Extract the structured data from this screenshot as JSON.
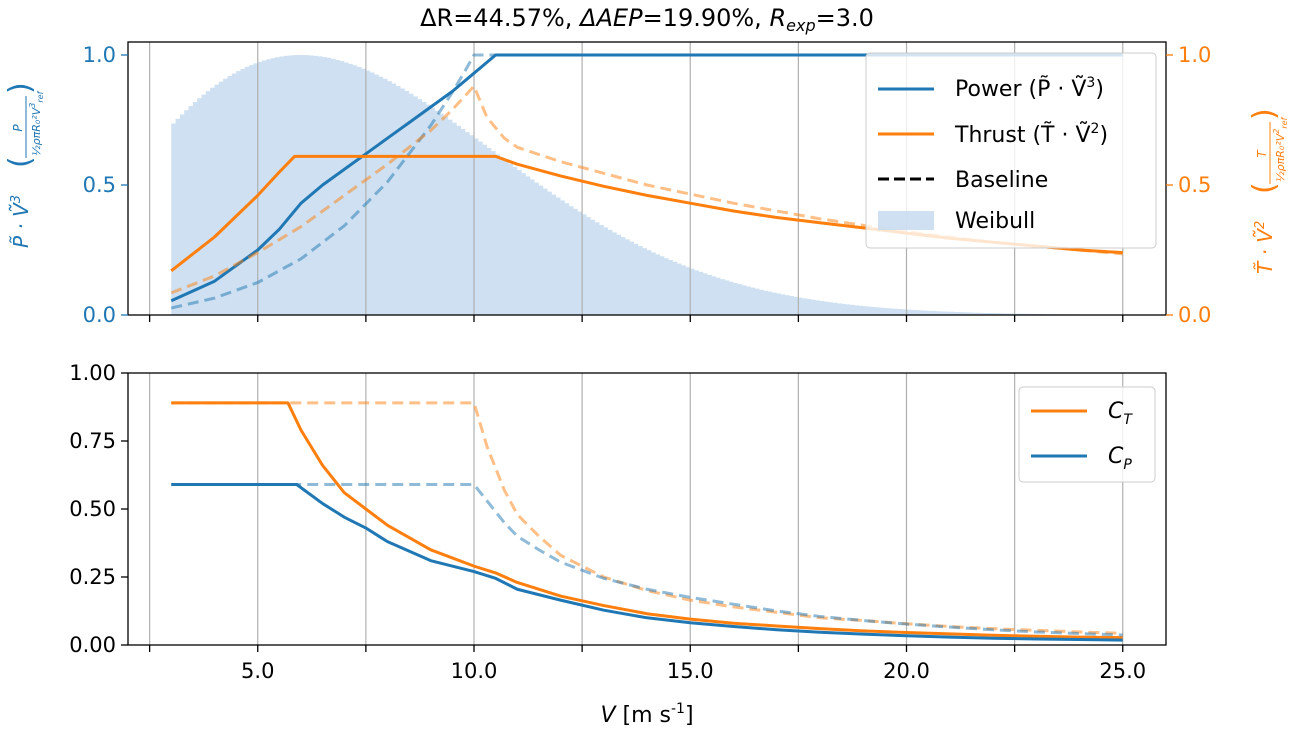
{
  "figure": {
    "title": "ΔR=44.57%, ΔAEP=19.90%, R_exp=3.0",
    "title_parts": {
      "dR_label": "ΔR",
      "dR_value": "=44.57%, ",
      "dAEP_label": "ΔAEP",
      "dAEP_value": "=19.90%, ",
      "Rexp_label": "R",
      "Rexp_sub": "exp",
      "Rexp_value": "=3.0"
    }
  },
  "colors": {
    "blue": "#1f77b4",
    "orange": "#ff7f0e",
    "weibull_fill": "#c6dbef",
    "grid": "#b0b0b0",
    "axis": "#000000"
  },
  "chart_data": [
    {
      "type": "line",
      "name": "top",
      "xlim": [
        2.0,
        26.0
      ],
      "ylim_left": [
        0.0,
        1.05
      ],
      "ylim_right": [
        0.0,
        1.05
      ],
      "x_gridlines": [
        2.5,
        5.0,
        7.5,
        10.0,
        12.5,
        15.0,
        17.5,
        20.0,
        22.5,
        25.0
      ],
      "yticks_left": [
        "0.0",
        "0.5",
        "1.0"
      ],
      "yticks_right": [
        "0.0",
        "0.5",
        "1.0"
      ],
      "ylabel_left": "P̃ · Ṽ³ (P / (½ρπR₀²V_ref³))",
      "ylabel_left_parts": {
        "main": "P̃ · Ṽ",
        "main_sup": "3",
        "frac_num": "P",
        "frac_den": "½ρπR₀²V",
        "frac_den_sup": "3",
        "frac_den_sub": "ref"
      },
      "ylabel_right": "T̃ · Ṽ² (T / (½ρπR₀²V_ref²))",
      "ylabel_right_parts": {
        "main": "T̃ · Ṽ",
        "main_sup": "2",
        "frac_num": "T",
        "frac_den": "½ρπR₀²V",
        "frac_den_sup": "2",
        "frac_den_sub": "ref"
      },
      "legend": {
        "placement": "top-right",
        "entries": [
          {
            "label": "Power (P̃ · Ṽ³)",
            "base": "Power (P̃ · Ṽ",
            "sup": "3",
            "end": ")",
            "style": "solid",
            "color": "#1f77b4"
          },
          {
            "label": "Thrust (T̃ · Ṽ²)",
            "base": "Thrust (T̃ · Ṽ",
            "sup": "2",
            "end": ")",
            "style": "solid",
            "color": "#ff7f0e"
          },
          {
            "label": "Baseline",
            "base": "Baseline",
            "sup": "",
            "end": "",
            "style": "dashed",
            "color": "#000000"
          },
          {
            "label": "Weibull",
            "base": "Weibull",
            "sup": "",
            "end": "",
            "style": "patch",
            "color": "#c6dbef"
          }
        ]
      },
      "weibull": {
        "x_start": 3.0,
        "x_end": 25.0,
        "bin_width": 0.1,
        "shape_k": 2.0,
        "peak_x": 6.0,
        "peak_value": 1.0
      },
      "series": [
        {
          "name": "Power (P̃ · Ṽ³)",
          "axis": "left",
          "color": "#1f77b4",
          "style": "solid",
          "x": [
            3.0,
            4.0,
            5.0,
            5.5,
            6.0,
            6.5,
            7.0,
            7.5,
            8.0,
            8.5,
            9.0,
            9.5,
            10.0,
            10.5,
            25.0
          ],
          "y": [
            0.055,
            0.13,
            0.25,
            0.33,
            0.43,
            0.5,
            0.56,
            0.62,
            0.68,
            0.74,
            0.8,
            0.86,
            0.93,
            1.0,
            1.0
          ]
        },
        {
          "name": "Thrust (T̃ · Ṽ²)",
          "axis": "right",
          "color": "#ff7f0e",
          "style": "solid",
          "x": [
            3.0,
            4.0,
            5.0,
            5.5,
            5.85,
            10.5,
            11.0,
            12.0,
            13.0,
            14.0,
            15.0,
            16.0,
            17.0,
            18.0,
            19.0,
            20.0,
            21.0,
            22.0,
            23.0,
            24.0,
            25.0
          ],
          "y": [
            0.17,
            0.3,
            0.46,
            0.55,
            0.61,
            0.61,
            0.58,
            0.535,
            0.495,
            0.46,
            0.43,
            0.4,
            0.375,
            0.355,
            0.335,
            0.315,
            0.295,
            0.28,
            0.265,
            0.25,
            0.24
          ]
        },
        {
          "name": "Power baseline",
          "axis": "left",
          "color": "#1f77b4",
          "style": "dashed",
          "x": [
            3.0,
            4.0,
            5.0,
            6.0,
            7.0,
            8.0,
            9.0,
            9.5,
            9.8,
            10.0,
            25.0
          ],
          "y": [
            0.027,
            0.065,
            0.125,
            0.216,
            0.343,
            0.512,
            0.729,
            0.857,
            0.941,
            1.0,
            1.0
          ]
        },
        {
          "name": "Thrust baseline",
          "axis": "right",
          "color": "#ff7f0e",
          "style": "dashed",
          "x": [
            3.0,
            4.0,
            5.0,
            6.0,
            7.0,
            8.0,
            9.0,
            9.5,
            10.0,
            10.3,
            10.7,
            11.0,
            12.0,
            13.0,
            14.0,
            15.0,
            16.0,
            17.0,
            18.0,
            19.0,
            20.0,
            21.0,
            22.0,
            23.0,
            24.0,
            25.0
          ],
          "y": [
            0.085,
            0.15,
            0.24,
            0.34,
            0.46,
            0.58,
            0.71,
            0.79,
            0.88,
            0.76,
            0.68,
            0.645,
            0.59,
            0.545,
            0.5,
            0.465,
            0.43,
            0.4,
            0.37,
            0.345,
            0.32,
            0.3,
            0.28,
            0.265,
            0.25,
            0.235
          ]
        }
      ]
    },
    {
      "type": "line",
      "name": "bottom",
      "xlim": [
        2.0,
        26.0
      ],
      "ylim": [
        0.0,
        1.0
      ],
      "x_gridlines": [
        2.5,
        5.0,
        7.5,
        10.0,
        12.5,
        15.0,
        17.5,
        20.0,
        22.5,
        25.0
      ],
      "yticks": [
        "0.00",
        "0.25",
        "0.50",
        "0.75",
        "1.00"
      ],
      "xticks": [
        "5.0",
        "10.0",
        "15.0",
        "20.0",
        "25.0"
      ],
      "xlabel": "V [m s-1]",
      "xlabel_parts": {
        "var": "V",
        "unit": " [m s",
        "exp": "-1",
        "close": "]"
      },
      "legend": {
        "placement": "top-right",
        "entries": [
          {
            "label": "C_T",
            "base": "C",
            "sub": "T",
            "color": "#ff7f0e"
          },
          {
            "label": "C_P",
            "base": "C",
            "sub": "P",
            "color": "#1f77b4"
          }
        ]
      },
      "series": [
        {
          "name": "C_T",
          "color": "#ff7f0e",
          "style": "solid",
          "x": [
            3.0,
            5.7,
            6.0,
            6.5,
            7.0,
            7.5,
            8.0,
            9.0,
            10.0,
            10.5,
            11.0,
            12.0,
            13.0,
            14.0,
            15.0,
            16.0,
            17.0,
            18.0,
            19.0,
            20.0,
            21.0,
            22.0,
            23.0,
            24.0,
            25.0
          ],
          "y": [
            0.89,
            0.89,
            0.79,
            0.66,
            0.56,
            0.5,
            0.44,
            0.35,
            0.29,
            0.265,
            0.23,
            0.18,
            0.145,
            0.115,
            0.095,
            0.08,
            0.07,
            0.06,
            0.052,
            0.046,
            0.041,
            0.036,
            0.032,
            0.029,
            0.027
          ]
        },
        {
          "name": "C_P",
          "color": "#1f77b4",
          "style": "solid",
          "x": [
            3.0,
            5.9,
            6.5,
            7.0,
            7.5,
            8.0,
            9.0,
            10.0,
            10.5,
            11.0,
            12.0,
            13.0,
            14.0,
            15.0,
            16.0,
            17.0,
            18.0,
            19.0,
            20.0,
            21.0,
            22.0,
            23.0,
            24.0,
            25.0
          ],
          "y": [
            0.59,
            0.59,
            0.52,
            0.47,
            0.43,
            0.38,
            0.31,
            0.27,
            0.245,
            0.205,
            0.165,
            0.128,
            0.1,
            0.082,
            0.068,
            0.056,
            0.047,
            0.04,
            0.034,
            0.029,
            0.025,
            0.022,
            0.02,
            0.018
          ]
        },
        {
          "name": "C_T baseline",
          "color": "#ff7f0e",
          "style": "dashed",
          "x": [
            3.0,
            10.0,
            10.3,
            10.7,
            11.0,
            11.5,
            12.0,
            13.0,
            14.0,
            15.0,
            16.0,
            17.0,
            18.0,
            19.0,
            20.0,
            21.0,
            22.0,
            23.0,
            24.0,
            25.0
          ],
          "y": [
            0.89,
            0.89,
            0.73,
            0.57,
            0.48,
            0.4,
            0.33,
            0.25,
            0.2,
            0.165,
            0.14,
            0.12,
            0.1,
            0.09,
            0.078,
            0.068,
            0.06,
            0.054,
            0.048,
            0.043
          ]
        },
        {
          "name": "C_P baseline",
          "color": "#1f77b4",
          "style": "dashed",
          "x": [
            3.0,
            10.0,
            10.3,
            10.7,
            11.0,
            11.5,
            12.0,
            13.0,
            14.0,
            15.0,
            16.0,
            17.0,
            18.0,
            19.0,
            20.0,
            21.0,
            22.0,
            23.0,
            24.0,
            25.0
          ],
          "y": [
            0.59,
            0.59,
            0.53,
            0.45,
            0.4,
            0.35,
            0.305,
            0.245,
            0.205,
            0.175,
            0.15,
            0.125,
            0.105,
            0.09,
            0.077,
            0.066,
            0.056,
            0.048,
            0.042,
            0.037
          ]
        }
      ]
    }
  ]
}
